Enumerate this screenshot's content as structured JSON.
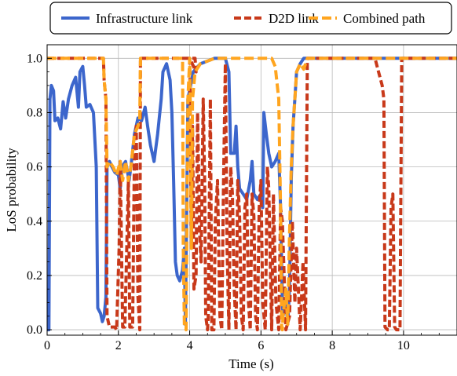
{
  "chart_data": {
    "type": "line",
    "xlabel": "Time (s)",
    "ylabel": "LoS probability",
    "xlim": [
      0,
      11.5
    ],
    "ylim": [
      -0.02,
      1.05
    ],
    "xticks": [
      0,
      2,
      4,
      6,
      8,
      10
    ],
    "yticks": [
      0.0,
      0.2,
      0.4,
      0.6,
      0.8,
      1.0
    ],
    "xtick_labels": [
      "0",
      "2",
      "4",
      "6",
      "8",
      "10"
    ],
    "ytick_labels": [
      "0.0",
      "0.2",
      "0.4",
      "0.6",
      "0.8",
      "1.0"
    ],
    "grid": true,
    "legend_position": "top",
    "series": [
      {
        "name": "Infrastructure link",
        "color": "#3c66cc",
        "style": "solid",
        "points": [
          [
            0,
            0.0
          ],
          [
            0.05,
            0.0
          ],
          [
            0.08,
            0.85
          ],
          [
            0.12,
            0.9
          ],
          [
            0.18,
            0.88
          ],
          [
            0.22,
            0.77
          ],
          [
            0.3,
            0.78
          ],
          [
            0.38,
            0.74
          ],
          [
            0.45,
            0.84
          ],
          [
            0.52,
            0.78
          ],
          [
            0.6,
            0.85
          ],
          [
            0.7,
            0.9
          ],
          [
            0.8,
            0.93
          ],
          [
            0.88,
            0.82
          ],
          [
            0.92,
            0.95
          ],
          [
            1.0,
            0.97
          ],
          [
            1.05,
            0.9
          ],
          [
            1.1,
            0.82
          ],
          [
            1.2,
            0.83
          ],
          [
            1.3,
            0.8
          ],
          [
            1.38,
            0.6
          ],
          [
            1.42,
            0.08
          ],
          [
            1.5,
            0.06
          ],
          [
            1.55,
            0.03
          ],
          [
            1.6,
            0.05
          ],
          [
            1.65,
            0.12
          ],
          [
            1.68,
            0.6
          ],
          [
            1.75,
            0.62
          ],
          [
            1.82,
            0.6
          ],
          [
            1.9,
            0.58
          ],
          [
            2.0,
            0.57
          ],
          [
            2.05,
            0.52
          ],
          [
            2.1,
            0.6
          ],
          [
            2.2,
            0.62
          ],
          [
            2.3,
            0.55
          ],
          [
            2.35,
            0.6
          ],
          [
            2.45,
            0.72
          ],
          [
            2.55,
            0.78
          ],
          [
            2.65,
            0.77
          ],
          [
            2.75,
            0.82
          ],
          [
            2.82,
            0.75
          ],
          [
            2.9,
            0.68
          ],
          [
            3.0,
            0.62
          ],
          [
            3.1,
            0.72
          ],
          [
            3.2,
            0.85
          ],
          [
            3.25,
            0.95
          ],
          [
            3.35,
            0.98
          ],
          [
            3.45,
            0.92
          ],
          [
            3.5,
            0.8
          ],
          [
            3.55,
            0.55
          ],
          [
            3.6,
            0.25
          ],
          [
            3.65,
            0.2
          ],
          [
            3.72,
            0.18
          ],
          [
            3.8,
            0.22
          ],
          [
            3.85,
            0.3
          ],
          [
            3.88,
            0.02
          ],
          [
            3.95,
            0.85
          ],
          [
            4.1,
            0.95
          ],
          [
            4.3,
            0.98
          ],
          [
            4.5,
            0.99
          ],
          [
            4.7,
            1.0
          ],
          [
            4.9,
            1.0
          ],
          [
            5.0,
            1.0
          ],
          [
            5.1,
            0.95
          ],
          [
            5.15,
            0.65
          ],
          [
            5.25,
            0.65
          ],
          [
            5.3,
            0.75
          ],
          [
            5.35,
            0.6
          ],
          [
            5.4,
            0.52
          ],
          [
            5.5,
            0.5
          ],
          [
            5.6,
            0.48
          ],
          [
            5.7,
            0.55
          ],
          [
            5.75,
            0.62
          ],
          [
            5.8,
            0.5
          ],
          [
            5.9,
            0.48
          ],
          [
            6.0,
            0.5
          ],
          [
            6.05,
            0.45
          ],
          [
            6.08,
            0.8
          ],
          [
            6.15,
            0.72
          ],
          [
            6.22,
            0.65
          ],
          [
            6.3,
            0.6
          ],
          [
            6.4,
            0.62
          ],
          [
            6.5,
            0.65
          ],
          [
            6.55,
            0.45
          ],
          [
            6.6,
            0.1
          ],
          [
            6.62,
            0.05
          ],
          [
            6.7,
            0.1
          ],
          [
            6.75,
            0.02
          ],
          [
            6.8,
            0.15
          ],
          [
            6.85,
            0.55
          ],
          [
            6.9,
            0.75
          ],
          [
            6.95,
            0.85
          ],
          [
            7.0,
            0.95
          ],
          [
            7.1,
            0.98
          ],
          [
            7.2,
            1.0
          ],
          [
            7.4,
            1.0
          ],
          [
            7.6,
            1.0
          ],
          [
            8.0,
            1.0
          ],
          [
            11.5,
            1.0
          ]
        ]
      },
      {
        "name": "D2D link",
        "color": "#c8391a",
        "style": "dashed",
        "points": [
          [
            0,
            1.0
          ],
          [
            1.58,
            1.0
          ],
          [
            1.6,
            0.92
          ],
          [
            1.65,
            0.85
          ],
          [
            1.68,
            0.05
          ],
          [
            1.75,
            0.01
          ],
          [
            1.85,
            0.01
          ],
          [
            1.9,
            0.01
          ],
          [
            1.95,
            0.0
          ],
          [
            2.02,
            0.3
          ],
          [
            2.05,
            0.62
          ],
          [
            2.12,
            0.01
          ],
          [
            2.18,
            0.01
          ],
          [
            2.28,
            0.55
          ],
          [
            2.32,
            0.01
          ],
          [
            2.4,
            0.01
          ],
          [
            2.45,
            0.65
          ],
          [
            2.5,
            0.75
          ],
          [
            2.55,
            0.12
          ],
          [
            2.6,
            0.0
          ],
          [
            2.62,
            1.0
          ],
          [
            4.15,
            1.0
          ],
          [
            4.18,
            0.95
          ],
          [
            4.0,
            1.0
          ],
          [
            4.05,
            0.3
          ],
          [
            4.08,
            0.75
          ],
          [
            4.12,
            0.15
          ],
          [
            4.18,
            0.2
          ],
          [
            4.22,
            0.8
          ],
          [
            4.28,
            0.35
          ],
          [
            4.32,
            0.25
          ],
          [
            4.38,
            0.85
          ],
          [
            4.42,
            0.55
          ],
          [
            4.45,
            0.05
          ],
          [
            4.5,
            0.0
          ],
          [
            4.52,
            0.05
          ],
          [
            4.58,
            0.85
          ],
          [
            4.62,
            0.0
          ],
          [
            4.68,
            0.0
          ],
          [
            4.72,
            0.4
          ],
          [
            4.78,
            0.55
          ],
          [
            4.85,
            0.05
          ],
          [
            4.9,
            0.0
          ],
          [
            4.95,
            0.55
          ],
          [
            5.0,
            0.98
          ],
          [
            5.05,
            0.3
          ],
          [
            5.1,
            0.0
          ],
          [
            5.15,
            0.6
          ],
          [
            5.2,
            0.5
          ],
          [
            5.25,
            0.15
          ],
          [
            5.3,
            0.0
          ],
          [
            5.35,
            0.55
          ],
          [
            5.4,
            0.42
          ],
          [
            5.45,
            0.05
          ],
          [
            5.5,
            0.0
          ],
          [
            5.55,
            0.45
          ],
          [
            5.6,
            0.5
          ],
          [
            5.65,
            0.1
          ],
          [
            5.7,
            0.0
          ],
          [
            5.75,
            0.5
          ],
          [
            5.8,
            0.42
          ],
          [
            5.85,
            0.05
          ],
          [
            5.9,
            0.0
          ],
          [
            5.95,
            0.45
          ],
          [
            6.0,
            0.55
          ],
          [
            6.05,
            0.1
          ],
          [
            6.12,
            0.0
          ],
          [
            6.18,
            0.6
          ],
          [
            6.22,
            0.52
          ],
          [
            6.3,
            0.0
          ],
          [
            6.35,
            0.5
          ],
          [
            6.42,
            0.1
          ],
          [
            6.5,
            0.0
          ],
          [
            6.55,
            0.45
          ],
          [
            6.6,
            0.4
          ],
          [
            6.7,
            0.0
          ],
          [
            6.8,
            0.05
          ],
          [
            6.88,
            0.4
          ],
          [
            6.95,
            0.1
          ],
          [
            7.0,
            0.3
          ],
          [
            7.1,
            0.0
          ],
          [
            7.18,
            0.25
          ],
          [
            7.25,
            0.0
          ],
          [
            7.3,
            1.0
          ],
          [
            9.2,
            1.0
          ],
          [
            9.3,
            0.95
          ],
          [
            9.4,
            0.9
          ],
          [
            9.45,
            0.85
          ],
          [
            9.48,
            0.01
          ],
          [
            9.55,
            0.0
          ],
          [
            9.6,
            0.0
          ],
          [
            9.65,
            0.45
          ],
          [
            9.7,
            0.5
          ],
          [
            9.75,
            0.01
          ],
          [
            9.8,
            0.0
          ],
          [
            9.9,
            0.0
          ],
          [
            9.95,
            1.0
          ],
          [
            11.5,
            1.0
          ]
        ]
      },
      {
        "name": "Combined path",
        "color": "#ffa51f",
        "style": "dashed",
        "points": [
          [
            0,
            1.0
          ],
          [
            1.58,
            1.0
          ],
          [
            1.6,
            0.92
          ],
          [
            1.65,
            0.85
          ],
          [
            1.68,
            0.6
          ],
          [
            1.75,
            0.62
          ],
          [
            1.85,
            0.6
          ],
          [
            1.95,
            0.57
          ],
          [
            2.05,
            0.62
          ],
          [
            2.12,
            0.55
          ],
          [
            2.2,
            0.62
          ],
          [
            2.28,
            0.55
          ],
          [
            2.35,
            0.6
          ],
          [
            2.45,
            0.72
          ],
          [
            2.55,
            0.75
          ],
          [
            2.6,
            0.78
          ],
          [
            2.62,
            1.0
          ],
          [
            3.8,
            1.0
          ],
          [
            3.82,
            0.3
          ],
          [
            3.85,
            0.02
          ],
          [
            3.9,
            0.0
          ],
          [
            3.95,
            0.85
          ],
          [
            4.0,
            1.0
          ],
          [
            4.05,
            0.3
          ],
          [
            4.08,
            0.85
          ],
          [
            4.15,
            0.95
          ],
          [
            4.3,
            0.98
          ],
          [
            4.5,
            0.99
          ],
          [
            4.7,
            1.0
          ],
          [
            6.3,
            1.0
          ],
          [
            6.4,
            0.97
          ],
          [
            6.5,
            0.85
          ],
          [
            6.55,
            0.45
          ],
          [
            6.58,
            0.01
          ],
          [
            6.6,
            0.0
          ],
          [
            6.62,
            0.05
          ],
          [
            6.7,
            0.15
          ],
          [
            6.75,
            0.02
          ],
          [
            6.8,
            0.35
          ],
          [
            6.85,
            0.6
          ],
          [
            6.9,
            0.75
          ],
          [
            6.95,
            0.85
          ],
          [
            7.0,
            0.95
          ],
          [
            7.1,
            0.98
          ],
          [
            7.2,
            0.96
          ],
          [
            7.3,
            1.0
          ],
          [
            11.5,
            1.0
          ]
        ]
      }
    ]
  }
}
